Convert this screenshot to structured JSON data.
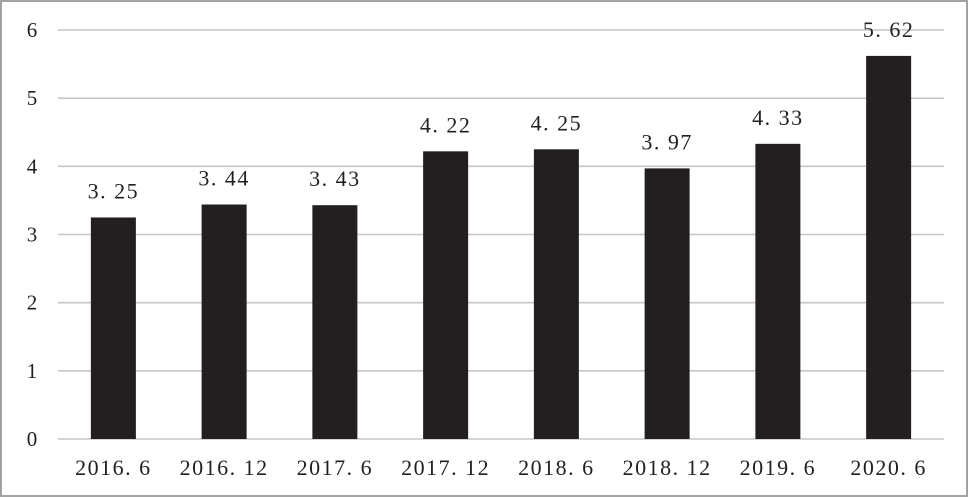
{
  "chart_data": {
    "type": "bar",
    "categories": [
      "2016. 6",
      "2016. 12",
      "2017. 6",
      "2017. 12",
      "2018. 6",
      "2018. 12",
      "2019. 6",
      "2020. 6"
    ],
    "values": [
      3.25,
      3.44,
      3.43,
      4.22,
      4.25,
      3.97,
      4.33,
      5.62
    ],
    "data_labels": [
      "3. 25",
      "3. 44",
      "3. 43",
      "4. 22",
      "4. 25",
      "3. 97",
      "4. 33",
      "5. 62"
    ],
    "ylim": [
      0,
      6
    ],
    "yticks": [
      0,
      1,
      2,
      3,
      4,
      5,
      6
    ],
    "grid": true
  },
  "colors": {
    "bar": "#231f20",
    "grid": "#c6c6c6",
    "text": "#231f20",
    "frame": "#a3a3a3",
    "background": "#ffffff"
  }
}
